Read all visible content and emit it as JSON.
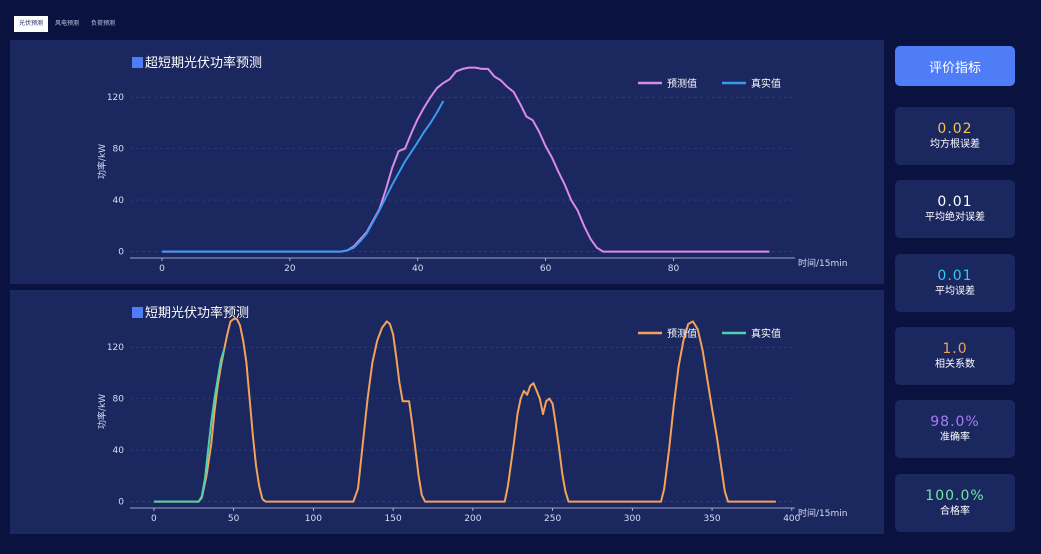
{
  "tabs": [
    {
      "label": "光伏预测",
      "active": true
    },
    {
      "label": "风电预测",
      "active": false
    },
    {
      "label": "负荷预测",
      "active": false
    }
  ],
  "colors": {
    "page_bg": "#0a1240",
    "panel_bg": "#1b275f",
    "grid": "#3a4780",
    "accent_button": "#4f7df8",
    "title_square": "#4f7df8",
    "top_pred": "#d98be6",
    "top_real": "#3a9af3",
    "bottom_pred": "#f2a25a",
    "bottom_real": "#4fd0b0"
  },
  "chart_data": [
    {
      "type": "line",
      "title": "超短期光伏功率预测",
      "xlabel": "时间/15min",
      "ylabel": "功率/kW",
      "xlim": [
        -5,
        99
      ],
      "ylim": [
        -5,
        145
      ],
      "xticks": [
        0,
        20,
        40,
        60,
        80
      ],
      "yticks": [
        0,
        40,
        80,
        120
      ],
      "grid": true,
      "legend": "top-right",
      "series": [
        {
          "name": "预测值",
          "color": "#d98be6",
          "points": [
            [
              0,
              0
            ],
            [
              28,
              0
            ],
            [
              29,
              1
            ],
            [
              30,
              4
            ],
            [
              32,
              15
            ],
            [
              34,
              33
            ],
            [
              35,
              48
            ],
            [
              36,
              65
            ],
            [
              37,
              78
            ],
            [
              38,
              80
            ],
            [
              39,
              92
            ],
            [
              40,
              103
            ],
            [
              41,
              112
            ],
            [
              42,
              120
            ],
            [
              43,
              127
            ],
            [
              44,
              131
            ],
            [
              45,
              134
            ],
            [
              46,
              140
            ],
            [
              47,
              142
            ],
            [
              48,
              143
            ],
            [
              49,
              143
            ],
            [
              50,
              142
            ],
            [
              51,
              142
            ],
            [
              52,
              136
            ],
            [
              53,
              133
            ],
            [
              54,
              128
            ],
            [
              55,
              124
            ],
            [
              56,
              115
            ],
            [
              57,
              105
            ],
            [
              58,
              102
            ],
            [
              59,
              93
            ],
            [
              60,
              82
            ],
            [
              61,
              73
            ],
            [
              62,
              62
            ],
            [
              63,
              52
            ],
            [
              64,
              40
            ],
            [
              65,
              32
            ],
            [
              66,
              20
            ],
            [
              67,
              10
            ],
            [
              68,
              3
            ],
            [
              69,
              0
            ],
            [
              95,
              0
            ]
          ]
        },
        {
          "name": "真实值",
          "color": "#3a9af3",
          "points": [
            [
              0,
              0
            ],
            [
              28,
              0
            ],
            [
              29,
              1
            ],
            [
              30,
              3
            ],
            [
              31,
              8
            ],
            [
              32,
              14
            ],
            [
              34,
              32
            ],
            [
              36,
              52
            ],
            [
              38,
              70
            ],
            [
              40,
              85
            ],
            [
              41,
              93
            ],
            [
              42,
              100
            ],
            [
              43,
              108
            ],
            [
              44,
              117
            ]
          ]
        }
      ]
    },
    {
      "type": "line",
      "title": "短期光伏功率预测",
      "xlabel": "时间/15min",
      "ylabel": "功率/kW",
      "xlim": [
        -15,
        402
      ],
      "ylim": [
        -5,
        145
      ],
      "xticks": [
        0,
        50,
        100,
        150,
        200,
        250,
        300,
        350,
        400
      ],
      "yticks": [
        0,
        40,
        80,
        120
      ],
      "grid": true,
      "legend": "top-right",
      "series": [
        {
          "name": "预测值",
          "color": "#f2a25a",
          "points": [
            [
              0,
              0
            ],
            [
              28,
              0
            ],
            [
              30,
              3
            ],
            [
              33,
              20
            ],
            [
              36,
              45
            ],
            [
              38,
              70
            ],
            [
              40,
              90
            ],
            [
              42,
              105
            ],
            [
              44,
              118
            ],
            [
              46,
              130
            ],
            [
              48,
              140
            ],
            [
              50,
              142
            ],
            [
              52,
              142
            ],
            [
              54,
              137
            ],
            [
              56,
              125
            ],
            [
              58,
              108
            ],
            [
              60,
              80
            ],
            [
              62,
              52
            ],
            [
              64,
              28
            ],
            [
              66,
              12
            ],
            [
              68,
              2
            ],
            [
              70,
              0
            ],
            [
              125,
              0
            ],
            [
              128,
              10
            ],
            [
              131,
              45
            ],
            [
              134,
              80
            ],
            [
              137,
              108
            ],
            [
              140,
              125
            ],
            [
              143,
              135
            ],
            [
              146,
              140
            ],
            [
              148,
              138
            ],
            [
              150,
              130
            ],
            [
              152,
              112
            ],
            [
              154,
              92
            ],
            [
              156,
              78
            ],
            [
              158,
              78
            ],
            [
              160,
              78
            ],
            [
              162,
              60
            ],
            [
              164,
              40
            ],
            [
              166,
              20
            ],
            [
              168,
              5
            ],
            [
              170,
              0
            ],
            [
              220,
              0
            ],
            [
              222,
              12
            ],
            [
              224,
              30
            ],
            [
              226,
              48
            ],
            [
              228,
              68
            ],
            [
              230,
              80
            ],
            [
              232,
              86
            ],
            [
              234,
              83
            ],
            [
              236,
              90
            ],
            [
              238,
              92
            ],
            [
              240,
              86
            ],
            [
              242,
              80
            ],
            [
              244,
              68
            ],
            [
              246,
              78
            ],
            [
              248,
              80
            ],
            [
              250,
              76
            ],
            [
              252,
              60
            ],
            [
              254,
              42
            ],
            [
              256,
              22
            ],
            [
              258,
              8
            ],
            [
              260,
              0
            ],
            [
              318,
              0
            ],
            [
              320,
              10
            ],
            [
              323,
              40
            ],
            [
              326,
              75
            ],
            [
              329,
              105
            ],
            [
              332,
              125
            ],
            [
              335,
              138
            ],
            [
              338,
              140
            ],
            [
              341,
              134
            ],
            [
              344,
              118
            ],
            [
              347,
              95
            ],
            [
              350,
              72
            ],
            [
              353,
              50
            ],
            [
              356,
              25
            ],
            [
              358,
              8
            ],
            [
              360,
              0
            ],
            [
              390,
              0
            ]
          ]
        },
        {
          "name": "真实值",
          "color": "#4fd0b0",
          "points": [
            [
              0,
              0
            ],
            [
              28,
              0
            ],
            [
              30,
              4
            ],
            [
              32,
              18
            ],
            [
              34,
              40
            ],
            [
              36,
              62
            ],
            [
              38,
              80
            ],
            [
              40,
              95
            ],
            [
              42,
              110
            ],
            [
              44,
              118
            ]
          ]
        }
      ]
    }
  ],
  "sidebar": {
    "button_label": "评价指标",
    "metrics": [
      {
        "value": "0.02",
        "label": "均方根误差",
        "color": "#f5c24d"
      },
      {
        "value": "0.01",
        "label": "平均绝对误差",
        "color": "#ffffff"
      },
      {
        "value": "0.01",
        "label": "平均误差",
        "color": "#2fc9f5"
      },
      {
        "value": "1.0",
        "label": "相关系数",
        "color": "#f2a25a"
      },
      {
        "value": "98.0%",
        "label": "准确率",
        "color": "#a87cf5"
      },
      {
        "value": "100.0%",
        "label": "合格率",
        "color": "#6ee8a3"
      }
    ]
  }
}
